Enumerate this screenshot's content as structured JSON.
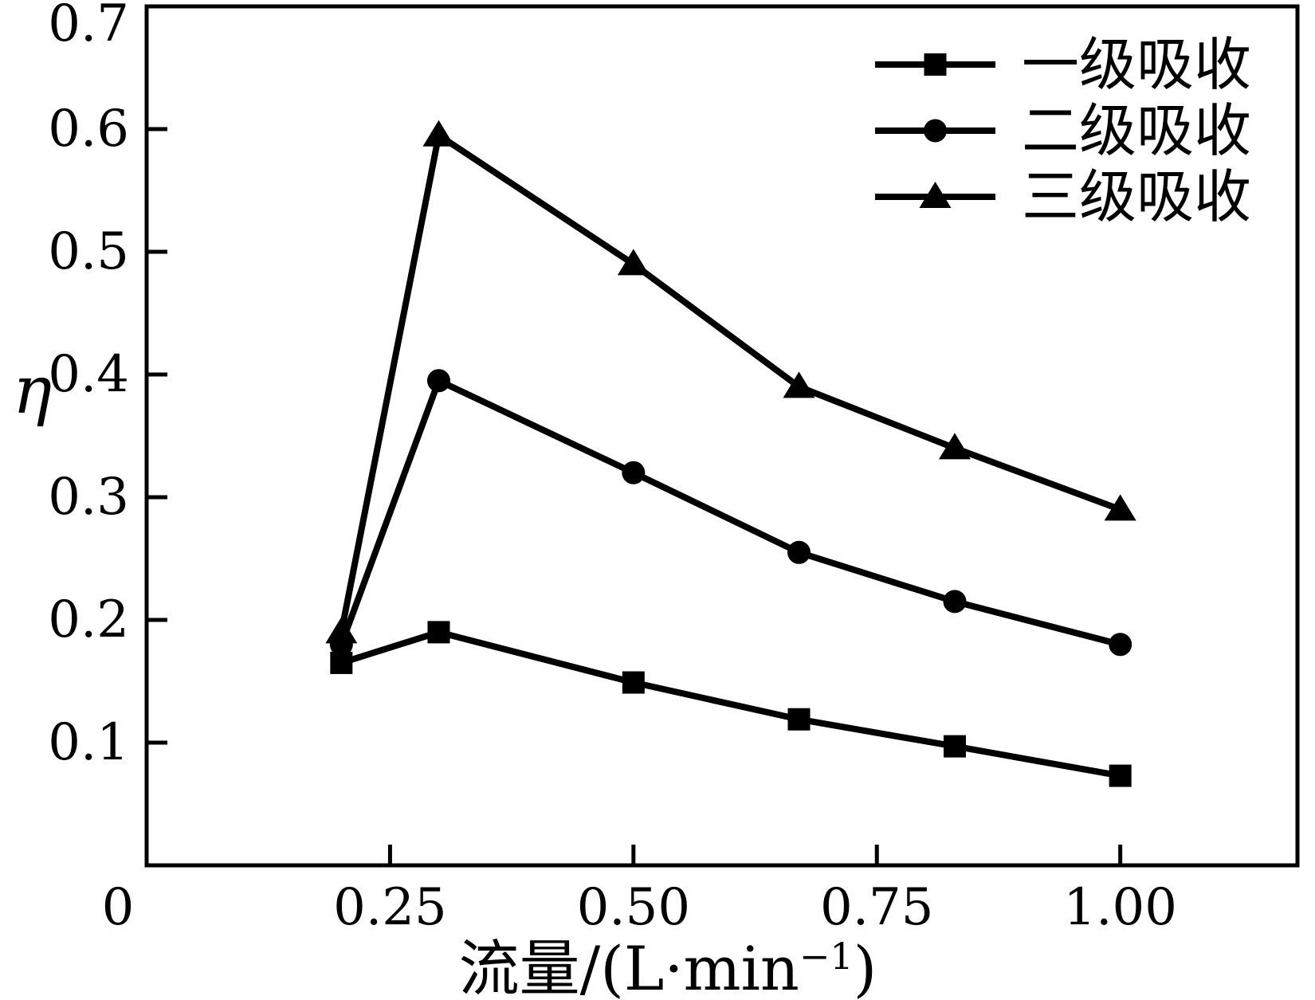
{
  "chart_data": {
    "type": "line",
    "title": "",
    "ylabel": "η",
    "xlabel": "流量/(L·min⁻¹)",
    "xlabel_parts": {
      "main": "流量/(L·min",
      "sup": "−1",
      "close": ")"
    },
    "xlim": [
      0,
      1.182
    ],
    "ylim": [
      0,
      0.7
    ],
    "grid": false,
    "legend_position": "upper-right-inside",
    "line_color": "#000000",
    "background_color": "#ffffff",
    "x_ticks": [
      {
        "v": 0,
        "label": "0"
      },
      {
        "v": 0.25,
        "label": "0.25"
      },
      {
        "v": 0.5,
        "label": "0.50"
      },
      {
        "v": 0.75,
        "label": "0.75"
      },
      {
        "v": 1.0,
        "label": "1.00"
      }
    ],
    "y_ticks": [
      {
        "v": 0.1,
        "label": "0.1"
      },
      {
        "v": 0.2,
        "label": "0.2"
      },
      {
        "v": 0.3,
        "label": "0.3"
      },
      {
        "v": 0.4,
        "label": "0.4"
      },
      {
        "v": 0.5,
        "label": "0.5"
      },
      {
        "v": 0.6,
        "label": "0.6"
      },
      {
        "v": 0.7,
        "label": "0.7"
      }
    ],
    "series": [
      {
        "name": "一级吸收",
        "marker": "square",
        "x": [
          0.2,
          0.3,
          0.5,
          0.67,
          0.83,
          1.0
        ],
        "y": [
          0.165,
          0.19,
          0.149,
          0.119,
          0.097,
          0.073
        ]
      },
      {
        "name": "二级吸收",
        "marker": "circle",
        "x": [
          0.2,
          0.3,
          0.5,
          0.67,
          0.83,
          1.0
        ],
        "y": [
          0.18,
          0.395,
          0.32,
          0.255,
          0.215,
          0.18
        ]
      },
      {
        "name": "三级吸收",
        "marker": "triangle",
        "x": [
          0.2,
          0.3,
          0.5,
          0.67,
          0.83,
          1.0
        ],
        "y": [
          0.19,
          0.595,
          0.49,
          0.39,
          0.34,
          0.29
        ]
      }
    ]
  }
}
